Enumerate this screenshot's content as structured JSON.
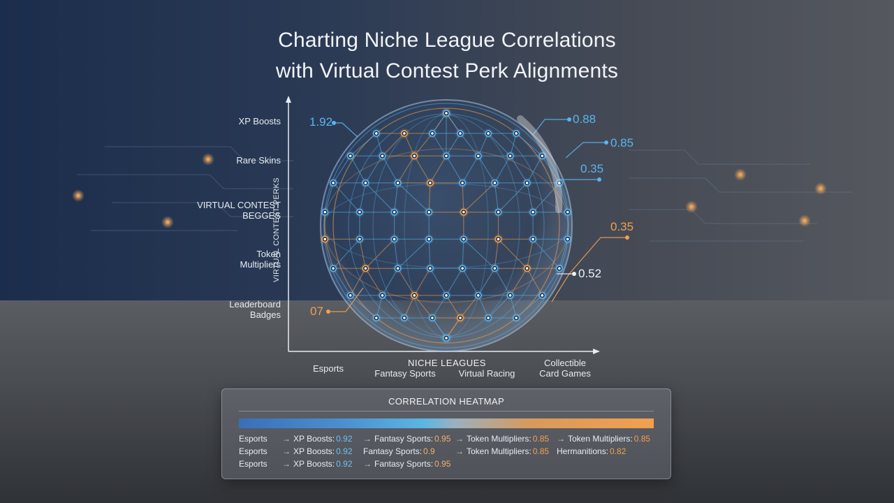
{
  "title_lines": [
    "Charting Niche League Correlations",
    "with Virtual Contest Perk Alignments"
  ],
  "colors": {
    "blue": "#5ab4f0",
    "orange": "#f2a04e",
    "white": "#eef2f8"
  },
  "chart_data": {
    "type": "scatter",
    "title": "Charting Niche League Correlations with Virtual Contest Perk Alignments",
    "xlabel": "NICHE LEAGUES",
    "ylabel": "VIRTUAL CONTEST PERKS",
    "categories_x": [
      "Esports",
      "Fantasy Sports",
      "Virtual Racing",
      "Collectible Card Games"
    ],
    "categories_y": [
      "XP Boosts",
      "Rare Skins",
      "VIRTUAL CONTEST BEGGES",
      "Token Multipliers",
      "Leaderboard Badges"
    ],
    "callouts": [
      {
        "label": "1.92",
        "color": "blue"
      },
      {
        "label": "0.88",
        "color": "blue"
      },
      {
        "label": "0.85",
        "color": "blue"
      },
      {
        "label": "0.35",
        "color": "blue"
      },
      {
        "label": "0.35",
        "color": "orange"
      },
      {
        "label": "0.52",
        "color": "white"
      },
      {
        "label": "07",
        "color": "orange"
      }
    ]
  },
  "axis": {
    "x_title": "NICHE LEAGUES",
    "y_title": "VIRTUAL CONTEST PERKS",
    "y_labels": [
      [
        "XP Boosts"
      ],
      [
        "Rare Skins"
      ],
      [
        "VIRTUAL CONTEST",
        "BEGGES"
      ],
      [
        "Token",
        "Multipliers"
      ],
      [
        "Leaderboard",
        "Badges"
      ]
    ],
    "x_labels": [
      [
        "Esports"
      ],
      [
        "Fantasy Sports"
      ],
      [
        "Virtual Racing"
      ],
      [
        "Collectible",
        "Card Games"
      ]
    ]
  },
  "heatmap": {
    "title": "CORRELATION HEATMAP",
    "rows": [
      [
        {
          "label": "Esports",
          "value": ""
        },
        {
          "label": "XP Boosts:",
          "value": "0.92",
          "arrow": "→"
        },
        {
          "label": "Fantasy Sports:",
          "value": "0.95",
          "arrow": "→"
        },
        {
          "label": "Token Multipliers:",
          "value": "0.85",
          "arrow": "→"
        },
        {
          "label": "Token Multipliers:",
          "value": "0.85",
          "arrow": "→"
        }
      ],
      [
        {
          "label": "Esports",
          "value": ""
        },
        {
          "label": "XP Boosts:",
          "value": "0.92",
          "arrow": "→"
        },
        {
          "label": "Fantasy Sports:",
          "value": "0.9",
          "arrow": ""
        },
        {
          "label": "Token Multipliers:",
          "value": "0.85",
          "arrow": "→"
        },
        {
          "label": "Hermanitions:",
          "value": "0.82",
          "arrow": ""
        }
      ],
      [
        {
          "label": "Esports",
          "value": ""
        },
        {
          "label": "XP Boosts:",
          "value": "0.92",
          "arrow": "→"
        },
        {
          "label": "Fantasy Sports:",
          "value": "0.95",
          "arrow": "→"
        }
      ]
    ]
  }
}
